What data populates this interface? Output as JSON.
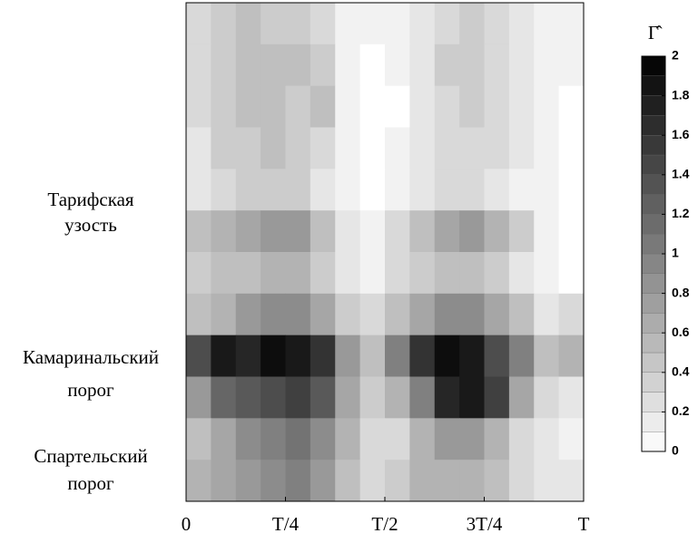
{
  "chart_data": {
    "type": "heatmap",
    "colorbar_title": "Γ̂",
    "xlim": [
      0,
      1
    ],
    "xticks": [
      0,
      {
        "value": 0.25,
        "label": "T/4"
      },
      {
        "value": 0.5,
        "label": "T/2"
      },
      {
        "value": 0.75,
        "label": "3T/4"
      },
      {
        "value": 1,
        "label": "T"
      }
    ],
    "region_labels": [
      [
        "Тарифская",
        "узость"
      ],
      [
        "Камаринальский",
        "порог"
      ],
      [
        "Спартельский",
        "порог"
      ]
    ],
    "clim": [
      0,
      2
    ],
    "cticks": [
      0,
      0.2,
      0.4,
      0.6,
      0.8,
      1,
      1.2,
      1.4,
      1.6,
      1.8,
      2
    ],
    "z": [
      [
        0.3,
        0.4,
        0.5,
        0.4,
        0.4,
        0.3,
        0.1,
        0.1,
        0.1,
        0.2,
        0.3,
        0.4,
        0.3,
        0.2,
        0.1,
        0.1
      ],
      [
        0.3,
        0.4,
        0.5,
        0.5,
        0.5,
        0.4,
        0.1,
        0.0,
        0.1,
        0.2,
        0.4,
        0.4,
        0.3,
        0.2,
        0.1,
        0.1
      ],
      [
        0.3,
        0.4,
        0.5,
        0.5,
        0.4,
        0.5,
        0.1,
        0.0,
        0.0,
        0.2,
        0.3,
        0.4,
        0.3,
        0.2,
        0.1,
        0.0
      ],
      [
        0.2,
        0.4,
        0.4,
        0.5,
        0.4,
        0.3,
        0.1,
        0.0,
        0.1,
        0.2,
        0.3,
        0.3,
        0.3,
        0.2,
        0.1,
        0.0
      ],
      [
        0.2,
        0.3,
        0.4,
        0.4,
        0.4,
        0.2,
        0.1,
        0.0,
        0.1,
        0.2,
        0.3,
        0.3,
        0.2,
        0.1,
        0.1,
        0.0
      ],
      [
        0.5,
        0.6,
        0.7,
        0.8,
        0.8,
        0.5,
        0.2,
        0.1,
        0.3,
        0.5,
        0.7,
        0.8,
        0.6,
        0.4,
        0.1,
        0.0
      ],
      [
        0.4,
        0.5,
        0.5,
        0.6,
        0.6,
        0.4,
        0.2,
        0.1,
        0.3,
        0.4,
        0.5,
        0.5,
        0.4,
        0.2,
        0.1,
        0.0
      ],
      [
        0.5,
        0.6,
        0.8,
        0.9,
        0.9,
        0.7,
        0.4,
        0.3,
        0.5,
        0.7,
        0.9,
        0.9,
        0.7,
        0.5,
        0.2,
        0.3
      ],
      [
        1.4,
        1.8,
        1.7,
        1.9,
        1.8,
        1.6,
        0.8,
        0.5,
        1.0,
        1.6,
        1.9,
        1.8,
        1.4,
        1.0,
        0.5,
        0.6
      ],
      [
        0.8,
        1.2,
        1.3,
        1.4,
        1.5,
        1.3,
        0.7,
        0.4,
        0.6,
        1.0,
        1.7,
        1.8,
        1.5,
        0.7,
        0.3,
        0.2
      ],
      [
        0.5,
        0.7,
        0.9,
        1.0,
        1.1,
        0.9,
        0.6,
        0.3,
        0.3,
        0.6,
        0.8,
        0.8,
        0.6,
        0.3,
        0.2,
        0.1
      ],
      [
        0.6,
        0.7,
        0.8,
        0.9,
        1.0,
        0.8,
        0.5,
        0.3,
        0.4,
        0.6,
        0.6,
        0.6,
        0.5,
        0.3,
        0.2,
        0.2
      ]
    ]
  }
}
